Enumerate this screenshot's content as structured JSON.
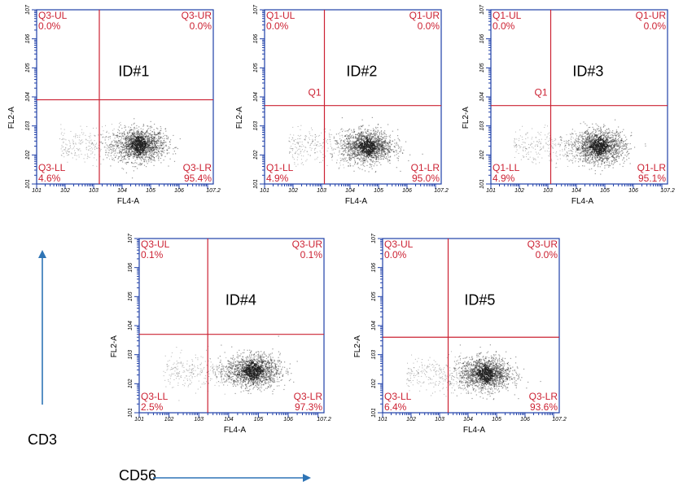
{
  "colors": {
    "axis": "#1f3fa8",
    "gate": "#cc2233",
    "dots": "#222222",
    "arrow": "#2e74b5"
  },
  "axis_labels": {
    "x": "FL4-A",
    "y": "FL2-A"
  },
  "x_ticks": [
    "10^1",
    "10^2",
    "10^3",
    "10^4",
    "10^5",
    "10^6",
    "10^7.2"
  ],
  "y_ticks": [
    "10^1",
    "10^2",
    "10^3",
    "10^4",
    "10^5",
    "10^6",
    "10^7"
  ],
  "markers": {
    "cd3": "CD3",
    "cd56": "CD56"
  },
  "chart_data": [
    {
      "type": "scatter",
      "title": "ID#1",
      "xlabel": "FL4-A",
      "ylabel": "FL2-A",
      "xscale": "log",
      "yscale": "log",
      "xlim": [
        1,
        7.2
      ],
      "ylim": [
        1,
        7
      ],
      "gate": {
        "x": 3.2,
        "y": 3.9
      },
      "quadrants": {
        "ul": "Q3-UL",
        "ul_pct": "0.0%",
        "ur": "Q3-UR",
        "ur_pct": "0.0%",
        "ll": "Q3-LL",
        "ll_pct": "4.6%",
        "lr": "Q3-LR",
        "lr_pct": "95.4%"
      },
      "cluster": {
        "center_x": 4.6,
        "center_y": 2.35
      }
    },
    {
      "type": "scatter",
      "title": "ID#2",
      "xlabel": "FL4-A",
      "ylabel": "FL2-A",
      "xscale": "log",
      "yscale": "log",
      "xlim": [
        1,
        7.2
      ],
      "ylim": [
        1,
        7
      ],
      "gate": {
        "x": 3.1,
        "y": 3.7
      },
      "gate_label": "Q1",
      "quadrants": {
        "ul": "Q1-UL",
        "ul_pct": "0.0%",
        "ur": "Q1-UR",
        "ur_pct": "0.0%",
        "ll": "Q1-LL",
        "ll_pct": "4.9%",
        "lr": "Q1-LR",
        "lr_pct": "95.0%"
      },
      "cluster": {
        "center_x": 4.6,
        "center_y": 2.3
      }
    },
    {
      "type": "scatter",
      "title": "ID#3",
      "xlabel": "FL4-A",
      "ylabel": "FL2-A",
      "xscale": "log",
      "yscale": "log",
      "xlim": [
        1,
        7.2
      ],
      "ylim": [
        1,
        7
      ],
      "gate": {
        "x": 3.1,
        "y": 3.7
      },
      "gate_label": "Q1",
      "quadrants": {
        "ul": "Q1-UL",
        "ul_pct": "0.0%",
        "ur": "Q1-UR",
        "ur_pct": "0.0%",
        "ll": "Q1-LL",
        "ll_pct": "4.9%",
        "lr": "Q1-LR",
        "lr_pct": "95.1%"
      },
      "cluster": {
        "center_x": 4.8,
        "center_y": 2.3
      }
    },
    {
      "type": "scatter",
      "title": "ID#4",
      "xlabel": "FL4-A",
      "ylabel": "FL2-A",
      "xscale": "log",
      "yscale": "log",
      "xlim": [
        1,
        7.2
      ],
      "ylim": [
        1,
        7
      ],
      "gate": {
        "x": 3.3,
        "y": 3.7
      },
      "quadrants": {
        "ul": "Q3-UL",
        "ul_pct": "0.1%",
        "ur": "Q3-UR",
        "ur_pct": "0.1%",
        "ll": "Q3-LL",
        "ll_pct": "2.5%",
        "lr": "Q3-LR",
        "lr_pct": "97.3%"
      },
      "cluster": {
        "center_x": 4.8,
        "center_y": 2.45
      }
    },
    {
      "type": "scatter",
      "title": "ID#5",
      "xlabel": "FL4-A",
      "ylabel": "FL2-A",
      "xscale": "log",
      "yscale": "log",
      "xlim": [
        1,
        7.2
      ],
      "ylim": [
        1,
        7
      ],
      "gate": {
        "x": 3.3,
        "y": 3.6
      },
      "quadrants": {
        "ul": "Q3-UL",
        "ul_pct": "0.0%",
        "ur": "Q3-UR",
        "ur_pct": "0.0%",
        "ll": "Q3-LL",
        "ll_pct": "6.4%",
        "lr": "Q3-LR",
        "lr_pct": "93.6%"
      },
      "cluster": {
        "center_x": 4.6,
        "center_y": 2.35
      }
    }
  ]
}
